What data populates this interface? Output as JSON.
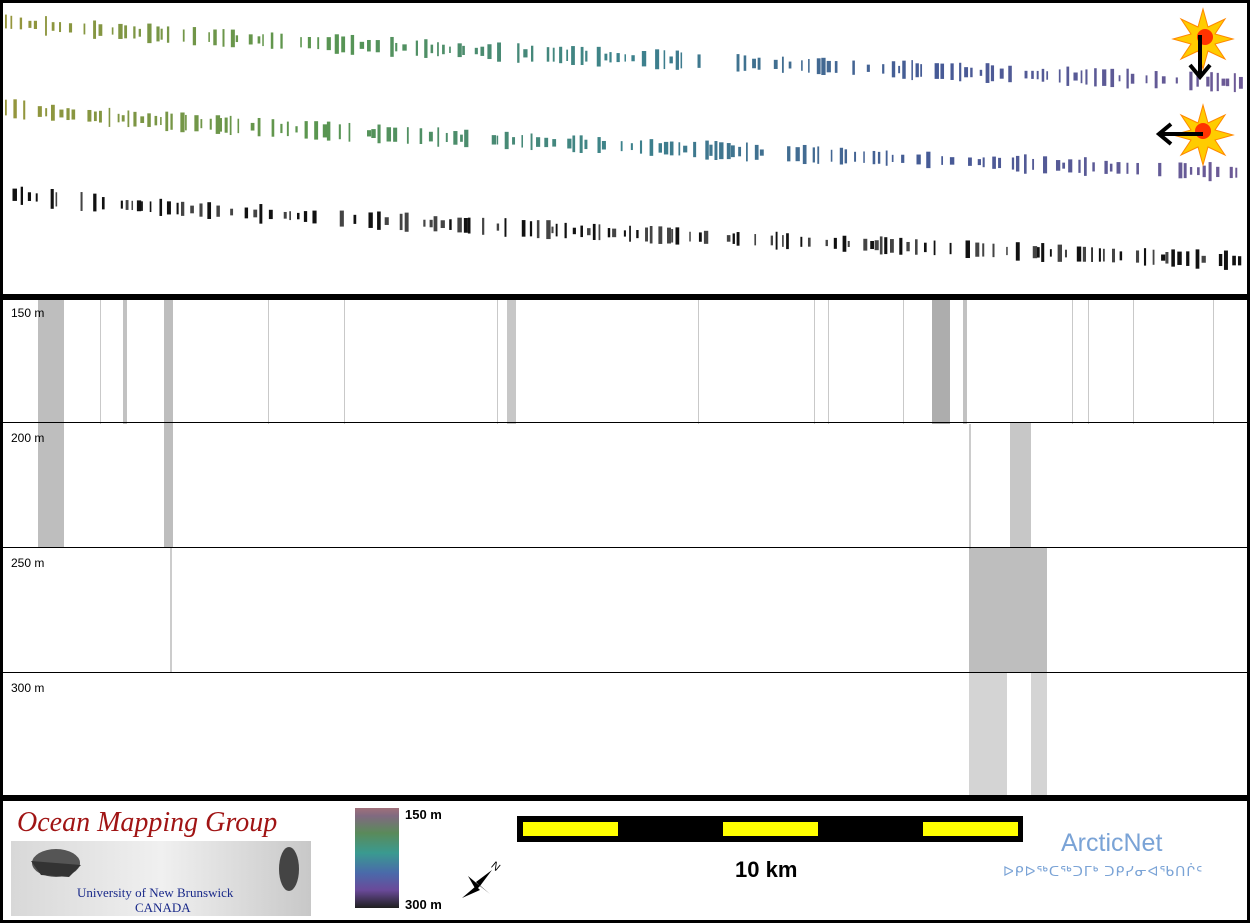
{
  "profile": {
    "depth_labels": [
      "150 m",
      "200 m",
      "250 m",
      "300 m"
    ]
  },
  "legend": {
    "logo": {
      "title": "Ocean Mapping Group",
      "subtitle_line1": "University of New Brunswick",
      "subtitle_line2": "CANADA"
    },
    "colorbar": {
      "top_label": "150 m",
      "bottom_label": "300 m"
    },
    "scale": {
      "label": "10 km"
    },
    "partner": {
      "name": "ArcticNet",
      "syllabics": "ᐅᑭᐅᖅᑕᖅᑐᒥᒃ ᑐᑭᓯᓂᐊᖃᑎᒌᑦ"
    },
    "north_icon": "north-arrow-icon"
  },
  "sun_icons": [
    "sun-icon",
    "sun-icon"
  ],
  "arrow_icons": [
    "arrow-down-icon",
    "arrow-left-icon"
  ]
}
